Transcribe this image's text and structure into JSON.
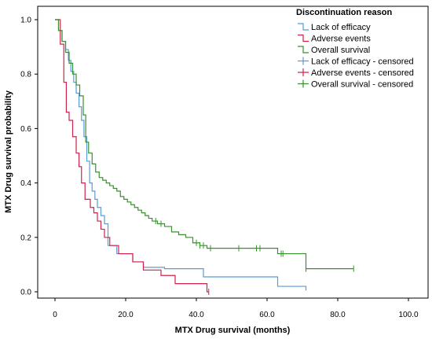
{
  "chart_data": {
    "type": "line",
    "step": true,
    "xlabel": "MTX Drug survival (months)",
    "ylabel": "MTX Drug survival probability",
    "xlim": [
      0,
      100
    ],
    "ylim": [
      0,
      1.0
    ],
    "x_ticks": [
      0,
      20,
      40,
      60,
      80,
      100
    ],
    "x_tick_labels": [
      "0",
      "20.0",
      "40.0",
      "60.0",
      "80.0",
      "100.0"
    ],
    "y_ticks": [
      0,
      0.2,
      0.4,
      0.6,
      0.8,
      1.0
    ],
    "y_tick_labels": [
      "0.0",
      "0.2",
      "0.4",
      "0.6",
      "0.8",
      "1.0"
    ],
    "grid": false,
    "legend": {
      "title": "Discontinuation reason",
      "position": "top-right",
      "entries": [
        {
          "label": "Lack of efficacy",
          "color": "#5b9bd5",
          "symbol": "step"
        },
        {
          "label": "Adverse events",
          "color": "#d0234b",
          "symbol": "step"
        },
        {
          "label": "Overall survival",
          "color": "#3a8f2e",
          "symbol": "step"
        },
        {
          "label": "Lack of efficacy - censored",
          "color": "#5b9bd5",
          "symbol": "plus"
        },
        {
          "label": "Adverse events - censored",
          "color": "#d0234b",
          "symbol": "plus"
        },
        {
          "label": "Overall survival - censored",
          "color": "#3a8f2e",
          "symbol": "plus"
        }
      ]
    },
    "series": [
      {
        "name": "Lack of efficacy",
        "color": "#5b9bd5",
        "x": [
          0,
          1,
          2,
          3,
          3.8,
          4.5,
          5.3,
          6,
          6.8,
          7.5,
          8.2,
          9,
          9.8,
          10.5,
          11.3,
          12,
          13,
          14,
          15,
          17.5,
          22,
          25,
          31,
          42,
          63,
          71
        ],
        "y": [
          1.0,
          0.96,
          0.92,
          0.89,
          0.85,
          0.81,
          0.77,
          0.73,
          0.68,
          0.63,
          0.57,
          0.48,
          0.4,
          0.37,
          0.34,
          0.31,
          0.28,
          0.25,
          0.17,
          0.14,
          0.11,
          0.09,
          0.085,
          0.055,
          0.02,
          0.005
        ],
        "censored": []
      },
      {
        "name": "Adverse events",
        "color": "#d0234b",
        "x": [
          0,
          1.5,
          2.5,
          3.2,
          4,
          5,
          6,
          6.8,
          7.5,
          8.5,
          10,
          11,
          12,
          13,
          14,
          15.5,
          18,
          22,
          25,
          30,
          34,
          43
        ],
        "y": [
          1.0,
          0.91,
          0.77,
          0.66,
          0.63,
          0.57,
          0.51,
          0.46,
          0.4,
          0.34,
          0.31,
          0.29,
          0.26,
          0.23,
          0.2,
          0.17,
          0.14,
          0.11,
          0.08,
          0.06,
          0.03,
          0.0
        ],
        "censored": [
          43.5
        ]
      },
      {
        "name": "Overall survival",
        "color": "#3a8f2e",
        "x": [
          0,
          1,
          2,
          3,
          4,
          5,
          6,
          7,
          8,
          8.7,
          9.5,
          10.5,
          11.5,
          12.5,
          13.5,
          14.5,
          15.5,
          16.5,
          17.5,
          18.5,
          19.5,
          20.5,
          21.5,
          22.5,
          23.5,
          24.5,
          25.5,
          26.5,
          27.5,
          29,
          31,
          33,
          35,
          37,
          39,
          41,
          43,
          63,
          71
        ],
        "y": [
          1.0,
          0.96,
          0.92,
          0.88,
          0.84,
          0.8,
          0.76,
          0.72,
          0.65,
          0.55,
          0.51,
          0.47,
          0.44,
          0.42,
          0.41,
          0.4,
          0.39,
          0.38,
          0.37,
          0.35,
          0.34,
          0.33,
          0.32,
          0.31,
          0.3,
          0.29,
          0.28,
          0.27,
          0.26,
          0.25,
          0.24,
          0.22,
          0.21,
          0.2,
          0.18,
          0.17,
          0.16,
          0.14,
          0.085
        ],
        "censored": [
          28.5,
          30,
          40,
          41,
          42,
          44,
          52,
          57,
          58,
          64,
          64.5,
          71,
          84.5
        ]
      }
    ]
  }
}
